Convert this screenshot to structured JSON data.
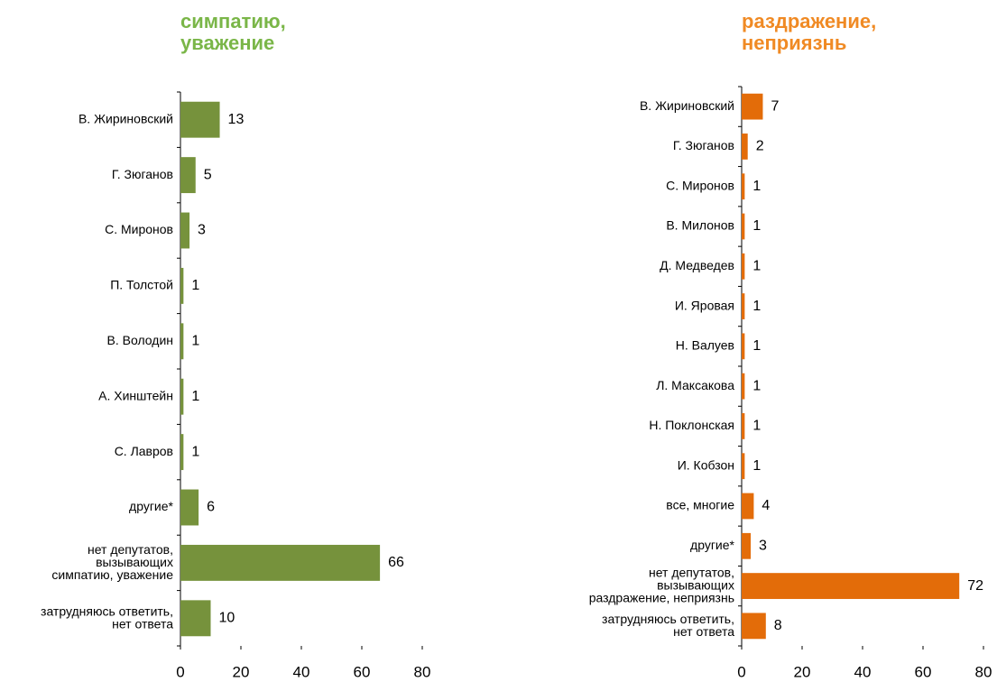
{
  "chart_data": [
    {
      "type": "barh",
      "title": "симпатию,\nуважение",
      "title_color": "#7ab648",
      "color": "#76923c",
      "categories": [
        "В. Жириновский",
        "Г. Зюганов",
        "С. Миронов",
        "П. Толстой",
        "В. Володин",
        "А. Хинштейн",
        "С. Лавров",
        "другие*",
        "нет депутатов,\nвызывающих\nсимпатию, уважение",
        "затрудняюсь ответить,\nнет ответа"
      ],
      "values": [
        13,
        5,
        3,
        1,
        1,
        1,
        1,
        6,
        66,
        10
      ],
      "xlim": [
        0,
        80
      ],
      "xticks": [
        0,
        20,
        40,
        60,
        80
      ]
    },
    {
      "type": "barh",
      "title": "раздражение,\nнеприязнь",
      "title_color": "#f08a24",
      "color": "#e36c09",
      "categories": [
        "В. Жириновский",
        "Г. Зюганов",
        "С. Миронов",
        "В. Милонов",
        "Д. Медведев",
        "И. Яровая",
        "Н. Валуев",
        "Л. Максакова",
        "Н. Поклонская",
        "И. Кобзон",
        "все, многие",
        "другие*",
        "нет депутатов,\nвызывающих\nраздражение, неприязнь",
        "затрудняюсь ответить,\nнет ответа"
      ],
      "values": [
        7,
        2,
        1,
        1,
        1,
        1,
        1,
        1,
        1,
        1,
        4,
        3,
        72,
        8
      ],
      "xlim": [
        0,
        80
      ],
      "xticks": [
        0,
        20,
        40,
        60,
        80
      ]
    }
  ]
}
